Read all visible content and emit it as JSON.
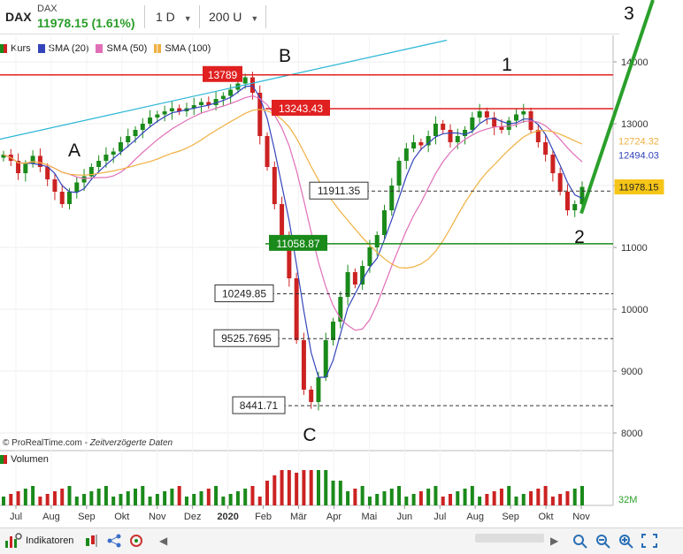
{
  "header": {
    "symbol": "DAX",
    "name": "DAX",
    "price": "11978.15 (1.61%)",
    "interval": "1 D",
    "bars": "200 U"
  },
  "legend": [
    {
      "label": "Kurs",
      "color": "#cc2222"
    },
    {
      "label": "SMA (20)",
      "color": "#3344bb"
    },
    {
      "label": "SMA (50)",
      "color": "#e06fb8"
    },
    {
      "label": "SMA (100)",
      "color": "#f0b040"
    }
  ],
  "volume_label": "Volumen",
  "copyright": "© ProRealTime.com",
  "delayed": "Zeitverzögerte Daten",
  "toolbar": {
    "indicators": "Indikatoren"
  },
  "icons": [
    "indicator-icon",
    "candles-icon",
    "share-icon",
    "settings-icon",
    "zoom-area-icon",
    "zoom-out-icon",
    "zoom-in-icon",
    "fullscreen-icon"
  ],
  "chart_data": {
    "type": "candlestick",
    "title": "DAX",
    "y_ticks": [
      8000,
      9000,
      10000,
      11000,
      12000,
      13000,
      14000
    ],
    "x_ticks": [
      "Jul",
      "Aug",
      "Sep",
      "Okt",
      "Nov",
      "Dez",
      "2020",
      "Feb",
      "Mär",
      "Apr",
      "Mai",
      "Jun",
      "Jul",
      "Aug",
      "Sep",
      "Okt",
      "Nov"
    ],
    "ylim": [
      7500,
      14900
    ],
    "horizontal_levels": [
      {
        "value": 13789,
        "label": "13789",
        "style": "solid",
        "color": "#e02020"
      },
      {
        "value": 13243.43,
        "label": "13243.43",
        "style": "solid",
        "color": "#e02020"
      },
      {
        "value": 11911.35,
        "label": "11911.35",
        "style": "dashed",
        "color": "#333333"
      },
      {
        "value": 11058.87,
        "label": "11058.87",
        "style": "solid",
        "color": "#1a8a1a"
      },
      {
        "value": 10249.85,
        "label": "10249.85",
        "style": "dashed",
        "color": "#333333"
      },
      {
        "value": 9525.7695,
        "label": "9525.7695",
        "style": "dashed",
        "color": "#333333"
      },
      {
        "value": 8441.71,
        "label": "8441.71",
        "style": "dashed",
        "color": "#333333"
      }
    ],
    "axis_badges": [
      {
        "value": 12724.32,
        "label": "12724.32",
        "color": "#f0b040"
      },
      {
        "value": 12494.03,
        "label": "12494.03",
        "color": "#3344bb"
      },
      {
        "value": 11978.15,
        "label": "11978.15",
        "color": "#f5c518"
      }
    ],
    "wave_labels": [
      "A",
      "B",
      "C",
      "1",
      "2",
      "3"
    ],
    "volume_badge": "32M",
    "close_series": [
      12500,
      12400,
      12200,
      12350,
      12480,
      12300,
      12100,
      11900,
      11700,
      11900,
      12050,
      12150,
      12300,
      12400,
      12500,
      12550,
      12700,
      12800,
      12900,
      13000,
      13100,
      13150,
      13200,
      13250,
      13200,
      13250,
      13300,
      13350,
      13300,
      13400,
      13450,
      13550,
      13650,
      13750,
      13500,
      12800,
      12300,
      11700,
      11200,
      10500,
      9500,
      8700,
      8500,
      8900,
      9500,
      9800,
      10200,
      10600,
      10400,
      10700,
      11000,
      11200,
      11600,
      12000,
      12400,
      12600,
      12700,
      12650,
      12800,
      13000,
      12900,
      12700,
      12800,
      12900,
      13100,
      13200,
      13100,
      12950,
      12900,
      13050,
      13150,
      13200,
      12900,
      12700,
      12500,
      12200,
      11900,
      11600,
      11700,
      11978
    ]
  }
}
